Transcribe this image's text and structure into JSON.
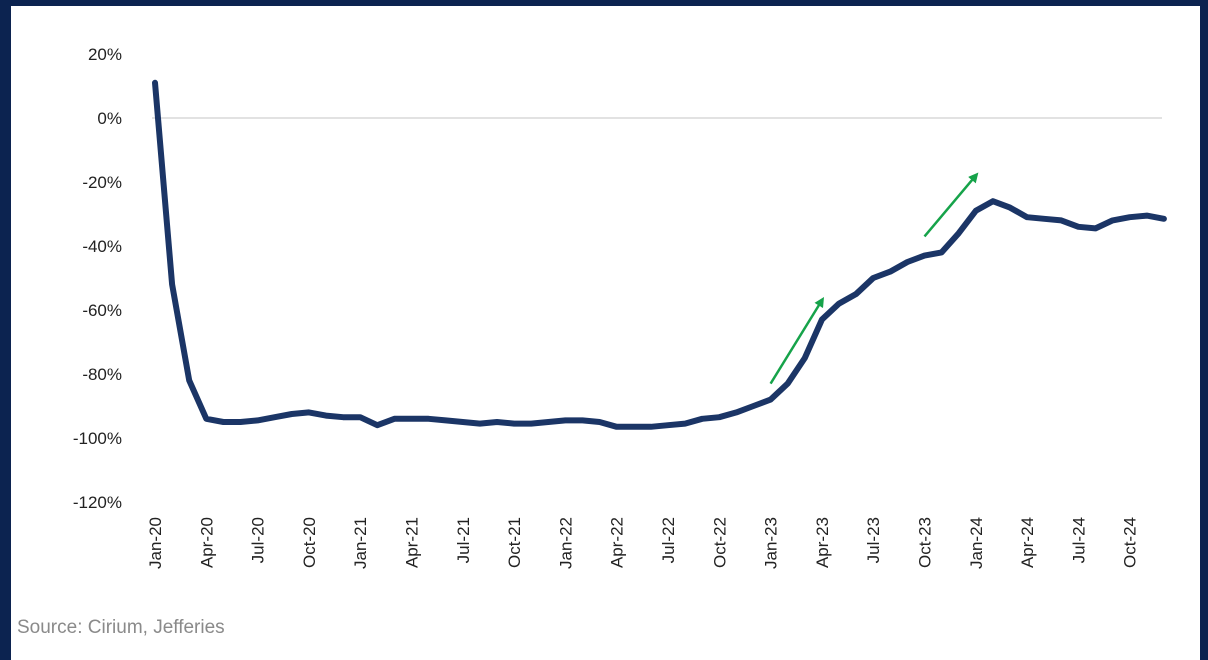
{
  "chart_data": {
    "type": "line",
    "title": "",
    "xlabel": "",
    "ylabel": "",
    "ylim": [
      -120,
      20
    ],
    "y_ticks": [
      20,
      0,
      -20,
      -40,
      -60,
      -80,
      -100,
      -120
    ],
    "y_tick_labels": [
      "20%",
      "0%",
      "-20%",
      "-40%",
      "-60%",
      "-80%",
      "-100%",
      "-120%"
    ],
    "x_tick_labels": [
      "Jan-20",
      "Apr-20",
      "Jul-20",
      "Oct-20",
      "Jan-21",
      "Apr-21",
      "Jul-21",
      "Oct-21",
      "Jan-22",
      "Apr-22",
      "Jul-22",
      "Oct-22",
      "Jan-23",
      "Apr-23",
      "Jul-23",
      "Oct-23",
      "Jan-24",
      "Apr-24",
      "Jul-24",
      "Oct-24"
    ],
    "grid": "zero line only",
    "legend": "none",
    "series_color": "#1b3566",
    "arrow_color": "#16a34a",
    "series": [
      {
        "name": "",
        "x": [
          "2020-01",
          "2020-02",
          "2020-03",
          "2020-04",
          "2020-05",
          "2020-06",
          "2020-07",
          "2020-08",
          "2020-09",
          "2020-10",
          "2020-11",
          "2020-12",
          "2021-01",
          "2021-02",
          "2021-03",
          "2021-04",
          "2021-05",
          "2021-06",
          "2021-07",
          "2021-08",
          "2021-09",
          "2021-10",
          "2021-11",
          "2021-12",
          "2022-01",
          "2022-02",
          "2022-03",
          "2022-04",
          "2022-05",
          "2022-06",
          "2022-07",
          "2022-08",
          "2022-09",
          "2022-10",
          "2022-11",
          "2022-12",
          "2023-01",
          "2023-02",
          "2023-03",
          "2023-04",
          "2023-05",
          "2023-06",
          "2023-07",
          "2023-08",
          "2023-09",
          "2023-10",
          "2023-11",
          "2023-12",
          "2024-01",
          "2024-02",
          "2024-03",
          "2024-04",
          "2024-05",
          "2024-06",
          "2024-07",
          "2024-08",
          "2024-09",
          "2024-10",
          "2024-11",
          "2024-12"
        ],
        "values": [
          11,
          -52,
          -82,
          -94,
          -95,
          -95,
          -94.5,
          -93.5,
          -92.5,
          -92,
          -93,
          -93.5,
          -93.5,
          -96,
          -94,
          -94,
          -94,
          -94.5,
          -95,
          -95.5,
          -95,
          -95.5,
          -95.5,
          -95,
          -94.5,
          -94.5,
          -95,
          -96.5,
          -96.5,
          -96.5,
          -96,
          -95.5,
          -94,
          -93.5,
          -92,
          -90,
          -88,
          -83,
          -75,
          -63,
          -58,
          -55,
          -50,
          -48,
          -45,
          -43,
          -42,
          -36,
          -29,
          -26,
          -28,
          -31,
          -31.5,
          -32,
          -34,
          -34.5,
          -32,
          -31,
          -30.5,
          -31.5
        ]
      }
    ],
    "annotations": [
      {
        "type": "arrow",
        "from": [
          "2023-01",
          -83
        ],
        "to": [
          "2023-04",
          -57
        ]
      },
      {
        "type": "arrow",
        "from": [
          "2023-10",
          -37
        ],
        "to": [
          "2024-01",
          -18
        ]
      }
    ]
  },
  "footer": {
    "source": "Source: Cirium, Jefferies"
  }
}
